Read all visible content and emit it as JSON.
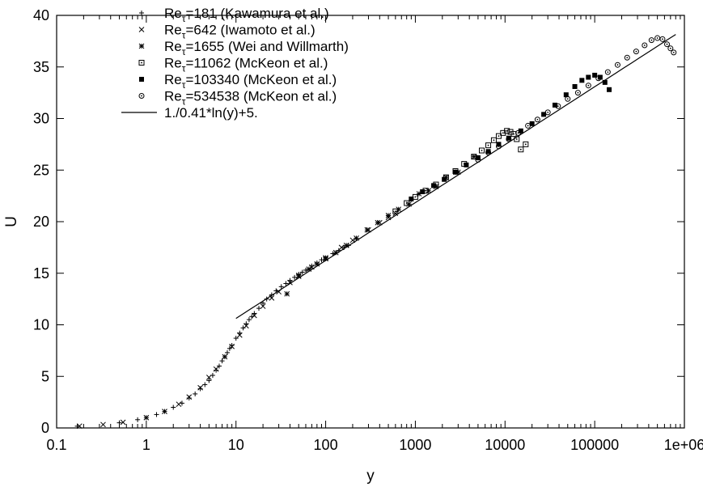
{
  "chart_data": {
    "type": "scatter",
    "title": "",
    "xlabel": "y",
    "ylabel": "U",
    "xscale": "log",
    "xlim": [
      0.1,
      1000000
    ],
    "ylim": [
      0,
      40
    ],
    "grid": false,
    "legend_position": "top-left",
    "x_ticks": [
      0.1,
      1,
      10,
      100,
      1000,
      10000,
      100000,
      1000000
    ],
    "x_tick_labels": [
      "0.1",
      "1",
      "10",
      "100",
      "1000",
      "10000",
      "100000",
      "1e+06"
    ],
    "y_ticks": [
      0,
      5,
      10,
      15,
      20,
      25,
      30,
      35,
      40
    ],
    "y_tick_labels": [
      "0",
      "5",
      "10",
      "15",
      "20",
      "25",
      "30",
      "35",
      "40"
    ],
    "series": [
      {
        "name": "Re_τ=181 (Kawamura et al.)",
        "label_main": "Re",
        "label_sub": "τ",
        "label_rest": "=181 (Kawamura et al.)",
        "marker": "plus",
        "x": [
          0.17,
          0.5,
          0.8,
          1.0,
          1.3,
          1.6,
          2.0,
          2.5,
          3.0,
          3.5,
          4.0,
          4.5,
          5.0,
          5.5,
          6.0,
          6.5,
          7.0,
          7.5,
          8.0,
          8.5,
          9.0,
          10.0,
          11.0,
          12.0,
          13.0,
          14.0,
          15.0,
          16.0,
          18.0,
          20.0,
          22.0,
          25.0,
          28.0,
          32.0,
          36.0,
          40.0,
          45.0,
          50.0,
          55.0,
          60.0,
          70.0,
          80.0,
          90.0,
          100.0,
          120.0,
          140.0,
          160.0,
          180.0
        ],
        "y": [
          0.17,
          0.5,
          0.8,
          1.0,
          1.3,
          1.6,
          2.0,
          2.4,
          2.9,
          3.3,
          3.8,
          4.2,
          4.6,
          5.1,
          5.6,
          6.0,
          6.5,
          6.9,
          7.3,
          7.7,
          8.0,
          8.7,
          9.2,
          9.7,
          10.1,
          10.5,
          10.8,
          11.1,
          11.6,
          12.1,
          12.5,
          12.9,
          13.3,
          13.7,
          14.0,
          14.3,
          14.6,
          14.9,
          15.1,
          15.3,
          15.7,
          16.0,
          16.3,
          16.5,
          16.9,
          17.2,
          17.5,
          17.7
        ]
      },
      {
        "name": "Re_τ=642 (Iwamoto et al.)",
        "label_main": "Re",
        "label_sub": "τ",
        "label_rest": "=642 (Iwamoto et al.)",
        "marker": "cross",
        "x": [
          0.18,
          0.33,
          0.55,
          1.0,
          1.6,
          2.3,
          3.0,
          4.0,
          5.0,
          6.0,
          7.5,
          9.0,
          11.0,
          13.0,
          16.0,
          20.0,
          25.0,
          30.0,
          40.0,
          50.0,
          70.0,
          100.0,
          150.0,
          200.0,
          300.0,
          400.0,
          500.0,
          600.0
        ],
        "y": [
          0.18,
          0.33,
          0.55,
          1.0,
          1.6,
          2.3,
          3.0,
          3.9,
          4.9,
          5.7,
          6.9,
          7.9,
          9.0,
          9.9,
          10.9,
          11.8,
          12.6,
          13.2,
          14.1,
          14.7,
          15.6,
          16.5,
          17.5,
          18.2,
          19.2,
          19.9,
          20.4,
          20.8
        ]
      },
      {
        "name": "Re_τ=1655 (Wei and Willmarth)",
        "label_main": "Re",
        "label_sub": "τ",
        "label_rest": "=1655 (Wei and Willmarth)",
        "marker": "star",
        "x": [
          37.0,
          50.0,
          65.0,
          80.0,
          100.0,
          130.0,
          170.0,
          220.0,
          290.0,
          380.0,
          500.0,
          650.0,
          850.0,
          1100.0,
          1400.0,
          1700.0,
          2200.0,
          3000.0,
          4500.0
        ],
        "y": [
          13.0,
          14.8,
          15.4,
          15.9,
          16.4,
          17.0,
          17.7,
          18.4,
          19.2,
          19.9,
          20.6,
          21.2,
          21.7,
          22.7,
          23.0,
          23.4,
          24.3,
          24.8,
          26.3
        ]
      },
      {
        "name": "Re_τ=11062 (McKeon et al.)",
        "label_main": "Re",
        "label_sub": "τ",
        "label_rest": "=11062 (McKeon et al.)",
        "marker": "square-open",
        "x": [
          600.0,
          800.0,
          1000.0,
          1300.0,
          1700.0,
          2200.0,
          2800.0,
          3500.0,
          4500.0,
          5500.0,
          6500.0,
          7500.0,
          8500.0,
          9500.0,
          10500.0,
          11500.0,
          12500.0,
          13500.0,
          15000.0,
          17000.0
        ],
        "y": [
          21.0,
          21.8,
          22.4,
          23.0,
          23.6,
          24.3,
          24.9,
          25.6,
          26.3,
          26.9,
          27.4,
          27.9,
          28.3,
          28.6,
          28.8,
          28.7,
          28.5,
          28.0,
          27.0,
          27.5
        ]
      },
      {
        "name": "Re_τ=103340 (McKeon et al.)",
        "label_main": "Re",
        "label_sub": "τ",
        "label_rest": "=103340 (McKeon et al.)",
        "marker": "square-filled",
        "x": [
          900.0,
          1200.0,
          1600.0,
          2100.0,
          2800.0,
          3700.0,
          5000.0,
          6500.0,
          8500.0,
          11000.0,
          15000.0,
          20000.0,
          27000.0,
          36000.0,
          48000.0,
          60000.0,
          72000.0,
          85000.0,
          100000.0,
          115000.0,
          130000.0,
          145000.0
        ],
        "y": [
          22.2,
          22.9,
          23.5,
          24.1,
          24.8,
          25.5,
          26.2,
          26.8,
          27.5,
          28.1,
          28.8,
          29.5,
          30.4,
          31.3,
          32.3,
          33.1,
          33.7,
          34.0,
          34.2,
          34.0,
          33.5,
          32.8
        ]
      },
      {
        "name": "Re_τ=534538 (McKeon et al.)",
        "label_main": "Re",
        "label_sub": "τ",
        "label_rest": "=534538 (McKeon et al.)",
        "marker": "circle-open",
        "x": [
          5000.0,
          6500.0,
          8500.0,
          11000.0,
          14000.0,
          18000.0,
          23000.0,
          30000.0,
          39000.0,
          50000.0,
          65000.0,
          85000.0,
          110000.0,
          140000.0,
          180000.0,
          230000.0,
          290000.0,
          360000.0,
          430000.0,
          500000.0,
          570000.0,
          640000.0,
          700000.0,
          760000.0
        ],
        "y": [
          26.0,
          26.7,
          27.3,
          28.0,
          28.6,
          29.3,
          29.9,
          30.6,
          31.2,
          31.9,
          32.5,
          33.2,
          33.9,
          34.5,
          35.2,
          35.9,
          36.5,
          37.1,
          37.6,
          37.8,
          37.7,
          37.2,
          36.8,
          36.4
        ]
      }
    ],
    "fit_line": {
      "name": "1./0.41*ln(y)+5.",
      "slope": 2.439,
      "intercept": 5.0,
      "x_start": 10,
      "x_end": 800000
    }
  }
}
